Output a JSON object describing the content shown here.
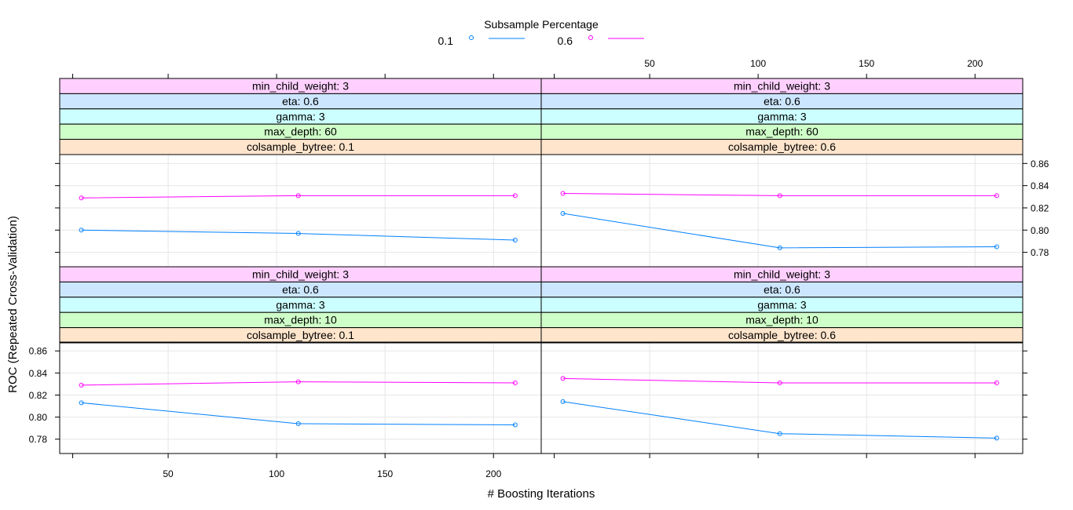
{
  "chart_data": {
    "type": "line",
    "xlabel": "# Boosting Iterations",
    "ylabel": "ROC (Repeated Cross-Validation)",
    "legend": {
      "title": "Subsample Percentage",
      "placement": "top",
      "entries": [
        {
          "label": "0.1",
          "color": "#0080ff"
        },
        {
          "label": "0.6",
          "color": "#ff00ff"
        }
      ]
    },
    "xlim": [
      0,
      222
    ],
    "ylim": [
      0.767,
      0.868
    ],
    "x_ticks": [
      50,
      100,
      150,
      200
    ],
    "y_ticks": [
      0.78,
      0.8,
      0.82,
      0.84,
      0.86
    ],
    "y_tick_labels": [
      "0.78",
      "0.80",
      "0.82",
      "0.84",
      "0.86"
    ],
    "grid": true,
    "panels": [
      {
        "strips": [
          "min_child_weight: 3",
          "eta: 0.6",
          "gamma: 3",
          "max_depth: 10",
          "colsample_bytree: 0.1"
        ],
        "series": [
          {
            "name": "0.1",
            "x": [
              10,
              110,
              210
            ],
            "values": [
              0.813,
              0.794,
              0.793
            ]
          },
          {
            "name": "0.6",
            "x": [
              10,
              110,
              210
            ],
            "values": [
              0.829,
              0.832,
              0.831
            ]
          }
        ]
      },
      {
        "strips": [
          "min_child_weight: 3",
          "eta: 0.6",
          "gamma: 3",
          "max_depth: 10",
          "colsample_bytree: 0.6"
        ],
        "series": [
          {
            "name": "0.1",
            "x": [
              10,
              110,
              210
            ],
            "values": [
              0.814,
              0.785,
              0.781
            ]
          },
          {
            "name": "0.6",
            "x": [
              10,
              110,
              210
            ],
            "values": [
              0.835,
              0.831,
              0.831
            ]
          }
        ]
      },
      {
        "strips": [
          "min_child_weight: 3",
          "eta: 0.6",
          "gamma: 3",
          "max_depth: 60",
          "colsample_bytree: 0.1"
        ],
        "series": [
          {
            "name": "0.1",
            "x": [
              10,
              110,
              210
            ],
            "values": [
              0.8,
              0.797,
              0.791
            ]
          },
          {
            "name": "0.6",
            "x": [
              10,
              110,
              210
            ],
            "values": [
              0.829,
              0.831,
              0.831
            ]
          }
        ]
      },
      {
        "strips": [
          "min_child_weight: 3",
          "eta: 0.6",
          "gamma: 3",
          "max_depth: 60",
          "colsample_bytree: 0.6"
        ],
        "series": [
          {
            "name": "0.1",
            "x": [
              10,
              110,
              210
            ],
            "values": [
              0.815,
              0.784,
              0.785
            ]
          },
          {
            "name": "0.6",
            "x": [
              10,
              110,
              210
            ],
            "values": [
              0.833,
              0.831,
              0.831
            ]
          }
        ]
      }
    ],
    "strip_colors": [
      "#ffd0ff",
      "#cce6ff",
      "#ccffff",
      "#cfffc8",
      "#ffe5cc"
    ]
  }
}
